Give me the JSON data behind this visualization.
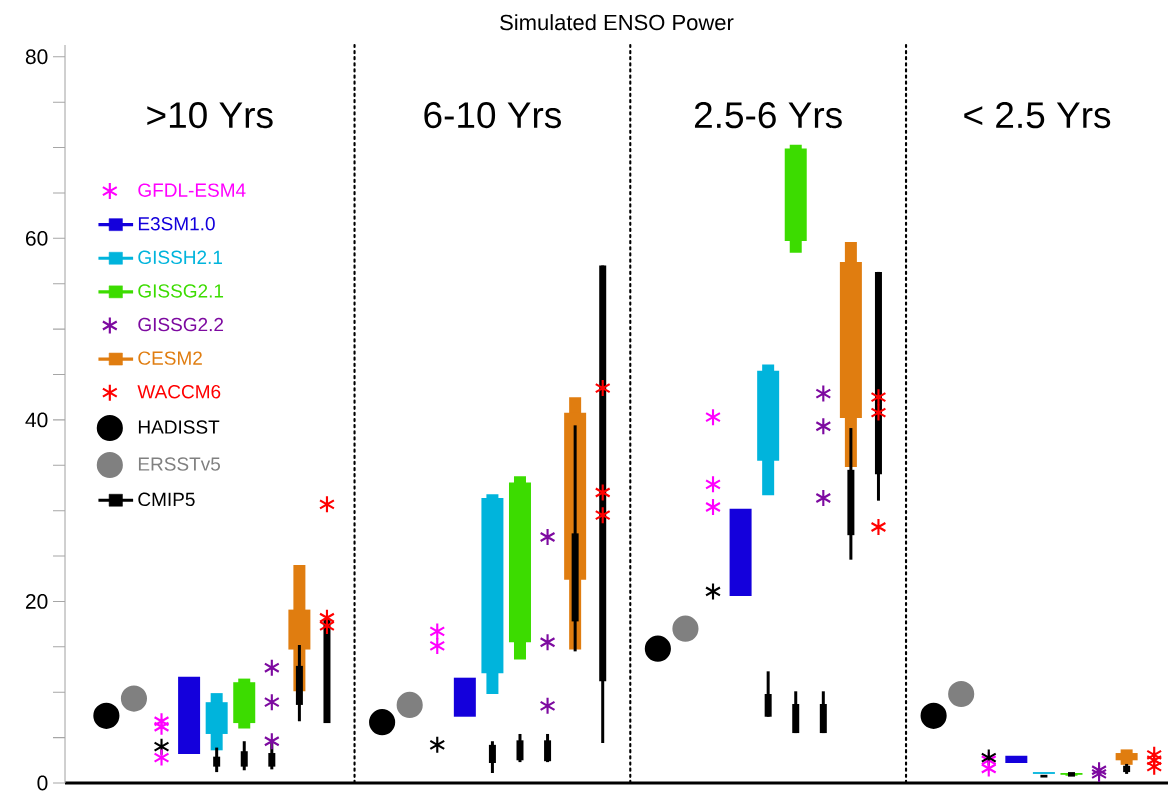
{
  "chart_data": {
    "type": "bar",
    "title": "Simulated ENSO Power",
    "categories": [
      null,
      null,
      null,
      null,
      null,
      null,
      null,
      null,
      null,
      null,
      null,
      null,
      null,
      null,
      null,
      null,
      null,
      null,
      null,
      null,
      null,
      null,
      null,
      null,
      null,
      null,
      null,
      null,
      null,
      null,
      null,
      null,
      null,
      null,
      null,
      null,
      null,
      null,
      null,
      null
    ],
    "ylim": [
      0,
      81.3
    ],
    "yticks": [
      0,
      {
        "value": 5,
        "label": null
      },
      {
        "value": 10,
        "label": null
      },
      {
        "value": 15,
        "label": null
      },
      20,
      {
        "value": 25,
        "label": null
      },
      {
        "value": 30,
        "label": null
      },
      {
        "value": 35,
        "label": null
      },
      40,
      {
        "value": 45,
        "label": null
      },
      {
        "value": 50,
        "label": null
      },
      {
        "value": 55,
        "label": null
      },
      60,
      {
        "value": 65,
        "label": null
      },
      {
        "value": 70,
        "label": null
      },
      {
        "value": 75,
        "label": null
      },
      80
    ],
    "tick_labels": "y",
    "legend": "top left",
    "annotations": [
      ">10 Yrs",
      "6-10 Yrs",
      "2.5-6 Yrs",
      "< 2.5 Yrs"
    ],
    "grid": "x",
    "series": [
      {
        "name": "GFDL-ESM4",
        "type": "scatter",
        "marker": "cross",
        "color": "#ff00ff",
        "values": [
          null,
          null,
          null,
          6.8,
          null,
          null,
          null,
          null,
          null,
          null,
          null,
          null,
          null,
          16.7,
          null,
          null,
          null,
          null,
          null,
          null,
          null,
          null,
          null,
          40.3,
          null,
          null,
          null,
          null,
          null,
          null,
          null,
          null,
          null,
          2.5,
          null,
          null,
          null,
          null,
          null,
          null
        ]
      },
      {
        "name": "E3SM1.0",
        "color": "#1400dc",
        "base": [
          null,
          null,
          null,
          null,
          3.2,
          null,
          null,
          null,
          null,
          null,
          null,
          null,
          null,
          null,
          7.3,
          null,
          null,
          null,
          null,
          null,
          null,
          null,
          null,
          null,
          20.6,
          null,
          null,
          null,
          null,
          null,
          null,
          null,
          null,
          null,
          2.2,
          null,
          null,
          null,
          null,
          null
        ],
        "values": [
          null,
          null,
          null,
          null,
          8.5,
          null,
          null,
          null,
          null,
          null,
          null,
          null,
          null,
          null,
          4.3,
          null,
          null,
          null,
          null,
          null,
          null,
          null,
          null,
          null,
          9.6,
          null,
          null,
          null,
          null,
          null,
          null,
          null,
          null,
          null,
          0.8,
          null,
          null,
          null,
          null,
          null
        ]
      },
      {
        "name": "GISSH2.1",
        "color": "#00b4dc",
        "base": [
          null,
          null,
          null,
          null,
          null,
          5.4,
          null,
          null,
          null,
          null,
          null,
          null,
          null,
          null,
          null,
          12.1,
          null,
          null,
          null,
          null,
          null,
          null,
          null,
          null,
          null,
          35.5,
          null,
          null,
          null,
          null,
          null,
          null,
          null,
          null,
          null,
          1.0,
          null,
          null,
          null,
          null
        ],
        "values": [
          null,
          null,
          null,
          null,
          null,
          3.5,
          null,
          null,
          null,
          null,
          null,
          null,
          null,
          null,
          null,
          19.3,
          null,
          null,
          null,
          null,
          null,
          null,
          null,
          null,
          null,
          9.9,
          null,
          null,
          null,
          null,
          null,
          null,
          null,
          null,
          null,
          0.2,
          null,
          null,
          null,
          null
        ],
        "errors": [
          null,
          null,
          null,
          null,
          null,
          [
            3.6,
            9.9
          ],
          null,
          null,
          null,
          null,
          null,
          null,
          null,
          null,
          null,
          [
            9.8,
            31.8
          ],
          null,
          null,
          null,
          null,
          null,
          null,
          null,
          null,
          null,
          [
            31.7,
            46.1
          ],
          null,
          null,
          null,
          null,
          null,
          null,
          null,
          null,
          null,
          null,
          null,
          null,
          null,
          null
        ]
      },
      {
        "name": "GISSG2.1",
        "color": "#3cdc00",
        "base": [
          null,
          null,
          null,
          null,
          null,
          null,
          6.6,
          null,
          null,
          null,
          null,
          null,
          null,
          null,
          null,
          null,
          15.5,
          null,
          null,
          null,
          null,
          null,
          null,
          null,
          null,
          null,
          59.7,
          null,
          null,
          null,
          null,
          null,
          null,
          null,
          null,
          null,
          0.9,
          null,
          null,
          null
        ],
        "values": [
          null,
          null,
          null,
          null,
          null,
          null,
          4.5,
          null,
          null,
          null,
          null,
          null,
          null,
          null,
          null,
          null,
          17.6,
          null,
          null,
          null,
          null,
          null,
          null,
          null,
          null,
          null,
          10.2,
          null,
          null,
          null,
          null,
          null,
          null,
          null,
          null,
          null,
          0.2,
          null,
          null,
          null
        ],
        "errors": [
          null,
          null,
          null,
          null,
          null,
          null,
          [
            6.0,
            11.5
          ],
          null,
          null,
          null,
          null,
          null,
          null,
          null,
          null,
          null,
          [
            13.6,
            33.8
          ],
          null,
          null,
          null,
          null,
          null,
          null,
          null,
          null,
          null,
          [
            58.4,
            70.3
          ],
          null,
          null,
          null,
          null,
          null,
          null,
          null,
          null,
          null,
          [
            0.8,
            1.1
          ],
          null,
          null,
          null
        ]
      },
      {
        "name": "GISSG2.2",
        "type": "scatter",
        "marker": "cross",
        "color": "#7d0aa0",
        "values": [
          null,
          null,
          null,
          null,
          null,
          null,
          null,
          12.7,
          null,
          null,
          null,
          null,
          null,
          null,
          null,
          null,
          null,
          27.1,
          null,
          null,
          null,
          null,
          null,
          null,
          null,
          null,
          null,
          42.9,
          null,
          null,
          null,
          null,
          null,
          null,
          null,
          null,
          null,
          1.4,
          null,
          null
        ]
      },
      {
        "name": "CESM2",
        "color": "#e07d10",
        "base": [
          null,
          null,
          null,
          null,
          null,
          null,
          null,
          null,
          14.7,
          null,
          null,
          null,
          null,
          null,
          null,
          null,
          null,
          null,
          22.4,
          null,
          null,
          null,
          null,
          null,
          null,
          null,
          null,
          null,
          40.2,
          null,
          null,
          null,
          null,
          null,
          null,
          null,
          null,
          null,
          2.5,
          null
        ],
        "values": [
          null,
          null,
          null,
          null,
          null,
          null,
          null,
          null,
          4.4,
          null,
          null,
          null,
          null,
          null,
          null,
          null,
          null,
          null,
          18.4,
          null,
          null,
          null,
          null,
          null,
          null,
          null,
          null,
          null,
          17.2,
          null,
          null,
          null,
          null,
          null,
          null,
          null,
          null,
          null,
          0.8,
          null
        ],
        "errors": [
          null,
          null,
          null,
          null,
          null,
          null,
          null,
          null,
          [
            10.1,
            24.0
          ],
          null,
          null,
          null,
          null,
          null,
          null,
          null,
          null,
          null,
          [
            14.7,
            42.5
          ],
          null,
          null,
          null,
          null,
          null,
          null,
          null,
          null,
          null,
          [
            34.8,
            59.6
          ],
          null,
          null,
          null,
          null,
          null,
          null,
          null,
          null,
          null,
          [
            2.0,
            3.7
          ],
          null
        ]
      },
      {
        "name": "WACCM6",
        "type": "scatter",
        "marker": "cross",
        "color": "#ff0000",
        "values": [
          null,
          null,
          null,
          null,
          null,
          null,
          null,
          null,
          null,
          30.7,
          null,
          null,
          null,
          null,
          null,
          null,
          null,
          null,
          null,
          43.5,
          null,
          null,
          null,
          null,
          null,
          null,
          null,
          null,
          null,
          42.5,
          null,
          null,
          null,
          null,
          null,
          null,
          null,
          null,
          null,
          3.1
        ]
      },
      {
        "name": "HADISST",
        "type": "scatter",
        "marker": "circle",
        "color": "#000000",
        "values": [
          null,
          7.4,
          null,
          null,
          null,
          null,
          null,
          null,
          null,
          null,
          null,
          6.7,
          null,
          null,
          null,
          null,
          null,
          null,
          null,
          null,
          null,
          14.8,
          null,
          null,
          null,
          null,
          null,
          null,
          null,
          null,
          null,
          7.4,
          null,
          null,
          null,
          null,
          null,
          null,
          null,
          null
        ]
      },
      {
        "name": "ERSSTv5",
        "type": "scatter",
        "marker": "circle",
        "color": "#808080",
        "values": [
          null,
          null,
          9.3,
          null,
          null,
          null,
          null,
          null,
          null,
          null,
          null,
          null,
          8.6,
          null,
          null,
          null,
          null,
          null,
          null,
          null,
          null,
          null,
          17.0,
          null,
          null,
          null,
          null,
          null,
          null,
          null,
          null,
          null,
          9.8,
          null,
          null,
          null,
          null,
          null,
          null,
          null
        ]
      },
      {
        "name": "CMIP5",
        "color": "#000000",
        "base": [
          null,
          null,
          null,
          null,
          null,
          1.8,
          1.8,
          1.8,
          8.6,
          6.6,
          null,
          null,
          null,
          null,
          null,
          2.2,
          2.5,
          2.4,
          17.8,
          11.2,
          null,
          null,
          null,
          null,
          null,
          7.3,
          5.5,
          5.5,
          27.3,
          34.0,
          null,
          null,
          null,
          null,
          null,
          0.6,
          0.7,
          null,
          1.2,
          null
        ],
        "values": [
          null,
          null,
          null,
          null,
          null,
          1.1,
          1.7,
          1.5,
          4.3,
          11.5,
          null,
          null,
          null,
          null,
          null,
          2.0,
          2.2,
          2.3,
          9.7,
          45.8,
          null,
          null,
          null,
          null,
          null,
          2.5,
          3.2,
          3.2,
          7.2,
          22.3,
          null,
          null,
          null,
          null,
          null,
          0.3,
          0.5,
          null,
          0.7,
          null
        ],
        "errors": [
          null,
          null,
          null,
          null,
          null,
          [
            1.2,
            3.9
          ],
          [
            1.4,
            4.6
          ],
          [
            1.5,
            4.6
          ],
          [
            6.8,
            15.2
          ],
          null,
          null,
          null,
          null,
          null,
          null,
          [
            1.1,
            4.6
          ],
          [
            2.3,
            5.4
          ],
          [
            2.3,
            5.4
          ],
          [
            14.5,
            39.4
          ],
          [
            4.4,
            57.0
          ],
          null,
          null,
          null,
          null,
          null,
          [
            7.3,
            12.3
          ],
          [
            5.5,
            10.1
          ],
          [
            5.5,
            10.1
          ],
          [
            24.6,
            39.1
          ],
          [
            31.1,
            56.3
          ],
          null,
          null,
          null,
          null,
          null,
          null,
          null,
          null,
          [
            1.0,
            2.1
          ],
          null
        ]
      },
      {
        "type": "scatter",
        "marker": "cross",
        "color": "#000000",
        "values": [
          null,
          null,
          null,
          4.0,
          null,
          null,
          null,
          null,
          null,
          null,
          null,
          null,
          null,
          4.2,
          null,
          null,
          null,
          null,
          null,
          null,
          null,
          null,
          null,
          21.1,
          null,
          null,
          null,
          null,
          null,
          null,
          null,
          null,
          null,
          2.8,
          null,
          null,
          null,
          null,
          null,
          null
        ]
      },
      {
        "type": "scatter",
        "marker": "cross",
        "color": "#ff00ff",
        "values": [
          null,
          null,
          null,
          6.2,
          null,
          null,
          null,
          null,
          null,
          null,
          null,
          null,
          null,
          15.1,
          null,
          null,
          null,
          null,
          null,
          null,
          null,
          null,
          null,
          32.9,
          null,
          null,
          null,
          null,
          null,
          null,
          null,
          null,
          null,
          1.6,
          null,
          null,
          null,
          null,
          null,
          null
        ]
      },
      {
        "type": "scatter",
        "marker": "cross",
        "color": "#ff00ff",
        "values": [
          null,
          null,
          null,
          2.8,
          null,
          null,
          null,
          null,
          null,
          null,
          null,
          null,
          null,
          null,
          null,
          null,
          null,
          null,
          null,
          null,
          null,
          null,
          null,
          30.4,
          null,
          null,
          null,
          null,
          null,
          null,
          null,
          null,
          null,
          null,
          null,
          null,
          null,
          null,
          null,
          null
        ]
      },
      {
        "type": "scatter",
        "marker": "cross",
        "color": "#7d0aa0",
        "values": [
          null,
          null,
          null,
          null,
          null,
          null,
          null,
          8.9,
          null,
          null,
          null,
          null,
          null,
          null,
          null,
          null,
          null,
          15.5,
          null,
          null,
          null,
          null,
          null,
          null,
          null,
          null,
          null,
          39.3,
          null,
          null,
          null,
          null,
          null,
          null,
          null,
          null,
          null,
          1.0,
          null,
          null
        ]
      },
      {
        "type": "scatter",
        "marker": "cross",
        "color": "#7d0aa0",
        "values": [
          null,
          null,
          null,
          null,
          null,
          null,
          null,
          4.6,
          null,
          null,
          null,
          null,
          null,
          null,
          null,
          null,
          null,
          8.5,
          null,
          null,
          null,
          null,
          null,
          null,
          null,
          null,
          null,
          31.4,
          null,
          null,
          null,
          null,
          null,
          null,
          null,
          null,
          null,
          null,
          null,
          null
        ]
      },
      {
        "type": "scatter",
        "marker": "cross",
        "color": "#ff0000",
        "values": [
          null,
          null,
          null,
          null,
          null,
          null,
          null,
          null,
          null,
          18.2,
          null,
          null,
          null,
          null,
          null,
          null,
          null,
          null,
          null,
          32.0,
          null,
          null,
          null,
          null,
          null,
          null,
          null,
          null,
          null,
          40.8,
          null,
          null,
          null,
          null,
          null,
          null,
          null,
          null,
          null,
          2.5
        ]
      },
      {
        "type": "scatter",
        "marker": "cross",
        "color": "#ff0000",
        "values": [
          null,
          null,
          null,
          null,
          null,
          null,
          null,
          null,
          null,
          17.3,
          null,
          null,
          null,
          null,
          null,
          null,
          null,
          null,
          null,
          29.5,
          null,
          null,
          null,
          null,
          null,
          null,
          null,
          null,
          null,
          28.2,
          null,
          null,
          null,
          null,
          null,
          null,
          null,
          null,
          null,
          1.8
        ]
      }
    ]
  }
}
